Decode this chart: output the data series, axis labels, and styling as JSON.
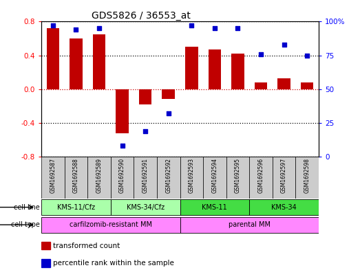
{
  "title": "GDS5826 / 36553_at",
  "samples": [
    "GSM1692587",
    "GSM1692588",
    "GSM1692589",
    "GSM1692590",
    "GSM1692591",
    "GSM1692592",
    "GSM1692593",
    "GSM1692594",
    "GSM1692595",
    "GSM1692596",
    "GSM1692597",
    "GSM1692598"
  ],
  "transformed_count": [
    0.72,
    0.6,
    0.65,
    -0.52,
    -0.18,
    -0.12,
    0.5,
    0.47,
    0.42,
    0.08,
    0.13,
    0.08
  ],
  "percentile_rank": [
    97,
    94,
    95,
    8,
    19,
    32,
    97,
    95,
    95,
    76,
    83,
    75
  ],
  "bar_color": "#c00000",
  "dot_color": "#0000cc",
  "ylim_left": [
    -0.8,
    0.8
  ],
  "ylim_right": [
    0,
    100
  ],
  "yticks_left": [
    -0.8,
    -0.4,
    0.0,
    0.4,
    0.8
  ],
  "yticks_right": [
    0,
    25,
    50,
    75,
    100
  ],
  "cell_line_groups": [
    {
      "label": "KMS-11/Cfz",
      "start": 0,
      "end": 3,
      "color": "#aaffaa"
    },
    {
      "label": "KMS-34/Cfz",
      "start": 3,
      "end": 6,
      "color": "#aaffaa"
    },
    {
      "label": "KMS-11",
      "start": 6,
      "end": 9,
      "color": "#44dd44"
    },
    {
      "label": "KMS-34",
      "start": 9,
      "end": 12,
      "color": "#44dd44"
    }
  ],
  "cell_type_groups": [
    {
      "label": "carfilzomib-resistant MM",
      "start": 0,
      "end": 6,
      "color": "#ff88ff"
    },
    {
      "label": "parental MM",
      "start": 6,
      "end": 12,
      "color": "#ff88ff"
    }
  ],
  "legend_items": [
    {
      "label": "transformed count",
      "color": "#c00000"
    },
    {
      "label": "percentile rank within the sample",
      "color": "#0000cc"
    }
  ],
  "background_color": "#ffffff",
  "sample_box_color": "#cccccc",
  "zero_line_color": "#cc0000",
  "dotted_line_color": "#000000"
}
